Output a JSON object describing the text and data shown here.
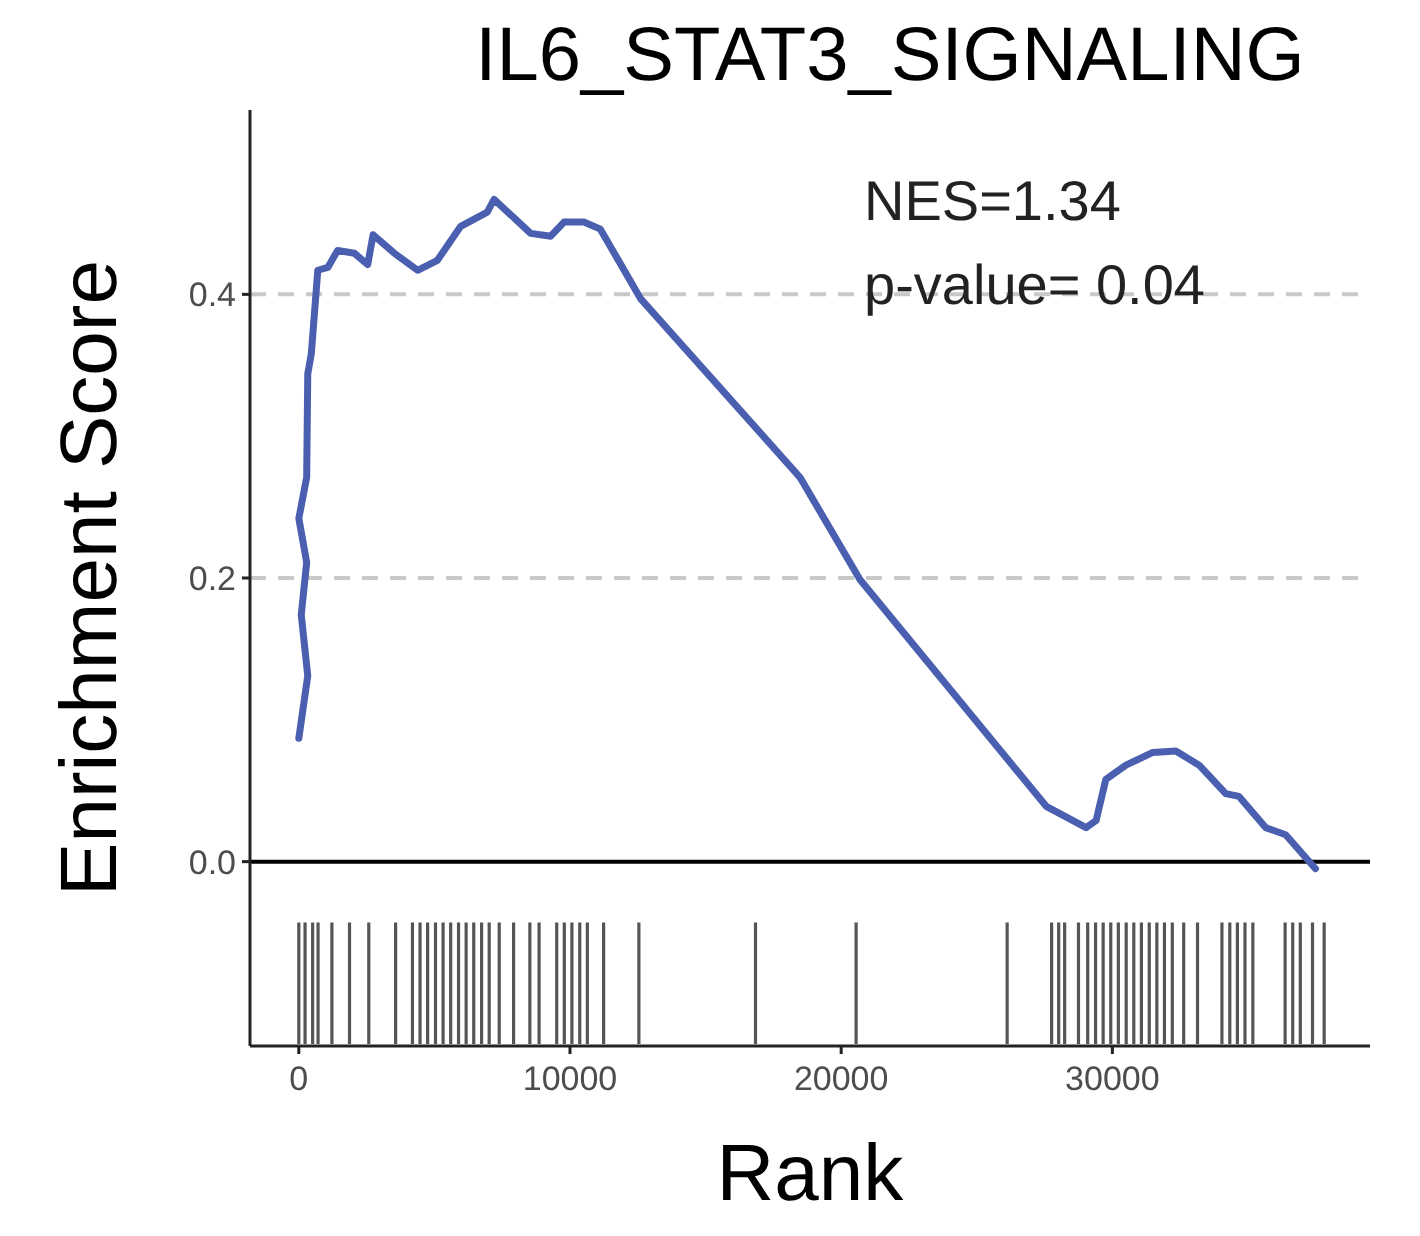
{
  "chart_data": {
    "type": "line",
    "title": "IL6_STAT3_SIGNALING",
    "xlabel": "Rank",
    "ylabel": "Enrichment Score",
    "annotations": [
      "NES=1.34",
      "p-value= 0.04"
    ],
    "xlim": [
      -1800,
      39500
    ],
    "ylim": [
      -0.13,
      0.53
    ],
    "xticks": [
      0,
      10000,
      20000,
      30000
    ],
    "yticks": [
      {
        "value": 0,
        "label": "0.0"
      },
      {
        "value": 0.2,
        "label": "0.2"
      },
      {
        "value": 0.4,
        "label": "0.4"
      }
    ],
    "marker": "none",
    "line_style": "solid",
    "series": [
      {
        "color": "#4a5fb0",
        "x": [
          0,
          330,
          90,
          290,
          0,
          290,
          330,
          460,
          700,
          1070,
          1430,
          2050,
          2540,
          2740,
          3520,
          4380,
          5110,
          5970,
          6950,
          7200,
          8550,
          9290,
          9780,
          10510,
          11120,
          12600,
          18480,
          20690,
          27560,
          29030,
          29400,
          29760,
          30500,
          31490,
          32340,
          33200,
          34180,
          34670,
          35650,
          36390,
          37490
        ],
        "values": [
          0.087,
          0.131,
          0.174,
          0.211,
          0.242,
          0.271,
          0.344,
          0.358,
          0.417,
          0.419,
          0.431,
          0.429,
          0.421,
          0.442,
          0.429,
          0.417,
          0.424,
          0.448,
          0.458,
          0.467,
          0.443,
          0.441,
          0.451,
          0.451,
          0.446,
          0.397,
          0.271,
          0.199,
          0.039,
          0.024,
          0.029,
          0.058,
          0.068,
          0.077,
          0.078,
          0.068,
          0.048,
          0.046,
          0.024,
          0.019,
          -0.005
        ]
      }
    ],
    "ref_lines": [
      {
        "axis": "y",
        "value": 0.2,
        "color": "#c8c8c8",
        "line_style": "dashed"
      },
      {
        "axis": "y",
        "value": 0.4,
        "color": "#c8c8c8",
        "line_style": "dashed"
      },
      {
        "axis": "y",
        "value": 0,
        "color": "#000000",
        "line_style": "solid"
      },
      {
        "axis": "x",
        "value": 0,
        "color": "#555555"
      },
      {
        "axis": "x",
        "value": 230,
        "color": "#555555"
      },
      {
        "axis": "x",
        "value": 510,
        "color": "#555555"
      },
      {
        "axis": "x",
        "value": 710,
        "color": "#555555"
      },
      {
        "axis": "x",
        "value": 1220,
        "color": "#555555"
      },
      {
        "axis": "x",
        "value": 1870,
        "color": "#555555"
      },
      {
        "axis": "x",
        "value": 2580,
        "color": "#555555"
      },
      {
        "axis": "x",
        "value": 3570,
        "color": "#555555"
      },
      {
        "axis": "x",
        "value": 4190,
        "color": "#555555"
      },
      {
        "axis": "x",
        "value": 4470,
        "color": "#555555"
      },
      {
        "axis": "x",
        "value": 4750,
        "color": "#555555"
      },
      {
        "axis": "x",
        "value": 5040,
        "color": "#555555"
      },
      {
        "axis": "x",
        "value": 5320,
        "color": "#555555"
      },
      {
        "axis": "x",
        "value": 5600,
        "color": "#555555"
      },
      {
        "axis": "x",
        "value": 5890,
        "color": "#555555"
      },
      {
        "axis": "x",
        "value": 6170,
        "color": "#555555"
      },
      {
        "axis": "x",
        "value": 6450,
        "color": "#555555"
      },
      {
        "axis": "x",
        "value": 6740,
        "color": "#555555"
      },
      {
        "axis": "x",
        "value": 7020,
        "color": "#555555"
      },
      {
        "axis": "x",
        "value": 7390,
        "color": "#555555"
      },
      {
        "axis": "x",
        "value": 7920,
        "color": "#555555"
      },
      {
        "axis": "x",
        "value": 8520,
        "color": "#555555"
      },
      {
        "axis": "x",
        "value": 8860,
        "color": "#555555"
      },
      {
        "axis": "x",
        "value": 9510,
        "color": "#555555"
      },
      {
        "axis": "x",
        "value": 9790,
        "color": "#555555"
      },
      {
        "axis": "x",
        "value": 10070,
        "color": "#555555"
      },
      {
        "axis": "x",
        "value": 10360,
        "color": "#555555"
      },
      {
        "axis": "x",
        "value": 10640,
        "color": "#555555"
      },
      {
        "axis": "x",
        "value": 11240,
        "color": "#555555"
      },
      {
        "axis": "x",
        "value": 12540,
        "color": "#555555"
      },
      {
        "axis": "x",
        "value": 16840,
        "color": "#555555"
      },
      {
        "axis": "x",
        "value": 20550,
        "color": "#555555"
      },
      {
        "axis": "x",
        "value": 26120,
        "color": "#555555"
      },
      {
        "axis": "x",
        "value": 27760,
        "color": "#555555"
      },
      {
        "axis": "x",
        "value": 28020,
        "color": "#555555"
      },
      {
        "axis": "x",
        "value": 28240,
        "color": "#555555"
      },
      {
        "axis": "x",
        "value": 28750,
        "color": "#555555"
      },
      {
        "axis": "x",
        "value": 29090,
        "color": "#555555"
      },
      {
        "axis": "x",
        "value": 29380,
        "color": "#555555"
      },
      {
        "axis": "x",
        "value": 29660,
        "color": "#555555"
      },
      {
        "axis": "x",
        "value": 29940,
        "color": "#555555"
      },
      {
        "axis": "x",
        "value": 30220,
        "color": "#555555"
      },
      {
        "axis": "x",
        "value": 30510,
        "color": "#555555"
      },
      {
        "axis": "x",
        "value": 30790,
        "color": "#555555"
      },
      {
        "axis": "x",
        "value": 31070,
        "color": "#555555"
      },
      {
        "axis": "x",
        "value": 31360,
        "color": "#555555"
      },
      {
        "axis": "x",
        "value": 31640,
        "color": "#555555"
      },
      {
        "axis": "x",
        "value": 31920,
        "color": "#555555"
      },
      {
        "axis": "x",
        "value": 32210,
        "color": "#555555"
      },
      {
        "axis": "x",
        "value": 32630,
        "color": "#555555"
      },
      {
        "axis": "x",
        "value": 33140,
        "color": "#555555"
      },
      {
        "axis": "x",
        "value": 34040,
        "color": "#555555"
      },
      {
        "axis": "x",
        "value": 34330,
        "color": "#555555"
      },
      {
        "axis": "x",
        "value": 34610,
        "color": "#555555"
      },
      {
        "axis": "x",
        "value": 34890,
        "color": "#555555"
      },
      {
        "axis": "x",
        "value": 35180,
        "color": "#555555"
      },
      {
        "axis": "x",
        "value": 36370,
        "color": "#555555"
      },
      {
        "axis": "x",
        "value": 36650,
        "color": "#555555"
      },
      {
        "axis": "x",
        "value": 36930,
        "color": "#555555"
      },
      {
        "axis": "x",
        "value": 37380,
        "color": "#555555"
      },
      {
        "axis": "x",
        "value": 37810,
        "color": "#555555"
      }
    ]
  }
}
